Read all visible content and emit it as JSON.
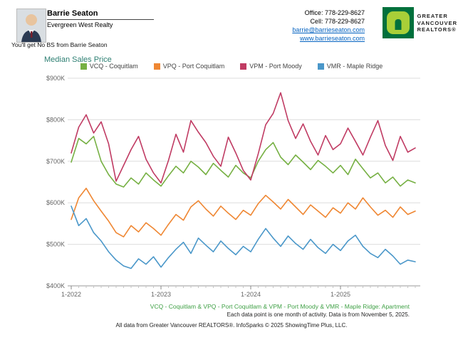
{
  "header": {
    "agent_name": "Barrie Seaton",
    "company": "Evergreen West Realty",
    "tagline": "You'll get No BS from Barrie Seaton",
    "office_label": "Office: 778-229-8627",
    "cell_label": "Cell: 778-229-8627",
    "email": "barrie@barrieseaton.com",
    "website": "www.barrieseaton.com",
    "logo": {
      "line1": "GREATER",
      "line2": "VANCOUVER",
      "line3": "REALTORS®"
    }
  },
  "chart_data": {
    "type": "line",
    "title": "Median Sales Price",
    "ylim": [
      400000,
      900000
    ],
    "grid": "horizontal",
    "legend_position": "top-center",
    "y_ticks": [
      {
        "label": "$400K",
        "value": 400000
      },
      {
        "label": "$500K",
        "value": 500000
      },
      {
        "label": "$600K",
        "value": 600000
      },
      {
        "label": "$700K",
        "value": 700000
      },
      {
        "label": "$800K",
        "value": 800000
      },
      {
        "label": "$900K",
        "value": 900000
      }
    ],
    "x_ticks": [
      {
        "label": "1-2022",
        "index": 0
      },
      {
        "label": "1-2023",
        "index": 12
      },
      {
        "label": "1-2024",
        "index": 24
      },
      {
        "label": "1-2025",
        "index": 36
      }
    ],
    "x": [
      "1-2022",
      "2-2022",
      "3-2022",
      "4-2022",
      "5-2022",
      "6-2022",
      "7-2022",
      "8-2022",
      "9-2022",
      "10-2022",
      "11-2022",
      "12-2022",
      "1-2023",
      "2-2023",
      "3-2023",
      "4-2023",
      "5-2023",
      "6-2023",
      "7-2023",
      "8-2023",
      "9-2023",
      "10-2023",
      "11-2023",
      "12-2023",
      "1-2024",
      "2-2024",
      "3-2024",
      "4-2024",
      "5-2024",
      "6-2024",
      "7-2024",
      "8-2024",
      "9-2024",
      "10-2024",
      "11-2024",
      "12-2024",
      "1-2025",
      "2-2025",
      "3-2025",
      "4-2025",
      "5-2025",
      "6-2025",
      "7-2025",
      "8-2025",
      "9-2025",
      "10-2025",
      "11-2025"
    ],
    "series": [
      {
        "name": "VCQ - Coquitlam",
        "color": "#76b043",
        "values": [
          698000,
          755000,
          742000,
          760000,
          700000,
          668000,
          645000,
          638000,
          660000,
          645000,
          672000,
          655000,
          640000,
          665000,
          688000,
          672000,
          700000,
          686000,
          668000,
          695000,
          678000,
          662000,
          690000,
          672000,
          660000,
          700000,
          728000,
          745000,
          710000,
          692000,
          715000,
          698000,
          680000,
          702000,
          688000,
          672000,
          690000,
          668000,
          705000,
          682000,
          660000,
          672000,
          648000,
          662000,
          640000,
          655000,
          648000
        ]
      },
      {
        "name": "VPQ - Port Coquitlam",
        "color": "#ef8733",
        "values": [
          560000,
          612000,
          635000,
          605000,
          580000,
          556000,
          528000,
          518000,
          545000,
          530000,
          552000,
          538000,
          522000,
          548000,
          572000,
          558000,
          590000,
          605000,
          585000,
          568000,
          592000,
          575000,
          560000,
          582000,
          570000,
          598000,
          618000,
          602000,
          585000,
          608000,
          590000,
          572000,
          595000,
          580000,
          565000,
          588000,
          575000,
          600000,
          585000,
          612000,
          590000,
          570000,
          582000,
          565000,
          590000,
          572000,
          580000
        ]
      },
      {
        "name": "VPM - Port Moody",
        "color": "#c03b63",
        "values": [
          720000,
          782000,
          812000,
          768000,
          795000,
          742000,
          652000,
          690000,
          728000,
          760000,
          705000,
          672000,
          648000,
          702000,
          765000,
          722000,
          798000,
          770000,
          745000,
          712000,
          688000,
          758000,
          720000,
          678000,
          655000,
          718000,
          788000,
          815000,
          865000,
          798000,
          755000,
          790000,
          748000,
          715000,
          762000,
          728000,
          742000,
          780000,
          748000,
          715000,
          758000,
          798000,
          738000,
          702000,
          760000,
          722000,
          732000
        ]
      },
      {
        "name": "VMR - Maple Ridge",
        "color": "#4a97c9",
        "values": [
          592000,
          545000,
          562000,
          528000,
          508000,
          482000,
          462000,
          448000,
          442000,
          465000,
          452000,
          470000,
          445000,
          468000,
          488000,
          505000,
          478000,
          515000,
          498000,
          482000,
          508000,
          490000,
          475000,
          495000,
          482000,
          512000,
          538000,
          515000,
          495000,
          520000,
          502000,
          488000,
          512000,
          492000,
          478000,
          500000,
          485000,
          508000,
          522000,
          495000,
          478000,
          468000,
          488000,
          472000,
          452000,
          462000,
          458000
        ]
      }
    ],
    "footnote1": "VCQ - Coquitlam & VPQ - Port Coquitlam & VPM - Port Moody & VMR - Maple Ridge: Apartment",
    "footnote2": "Each data point is one month of activity. Data is from November 5, 2025.",
    "footnote3": "All data from Greater Vancouver REALTORS®. InfoSparks © 2025 ShowingTime Plus, LLC."
  }
}
